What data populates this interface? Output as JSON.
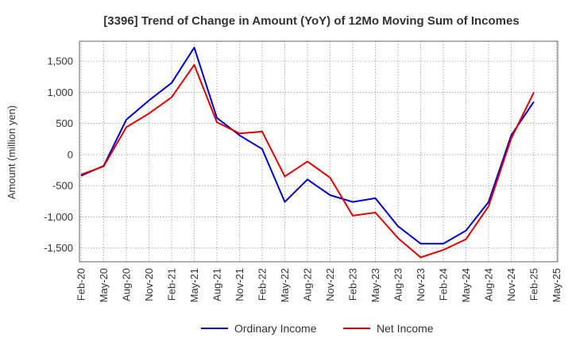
{
  "chart_data": {
    "type": "line",
    "title": "[3396]  Trend of Change in Amount (YoY) of 12Mo Moving Sum of Incomes",
    "xlabel": "",
    "ylabel": "Amount (million yen)",
    "ylim": [
      -1720,
      1820
    ],
    "yticks": [
      -1500,
      -1000,
      -500,
      0,
      500,
      1000,
      1500
    ],
    "ytick_labels": [
      "-1,500",
      "-1,000",
      "-500",
      "0",
      "500",
      "1,000",
      "1,500"
    ],
    "categories": [
      "Feb-20",
      "May-20",
      "Aug-20",
      "Nov-20",
      "Feb-21",
      "May-21",
      "Aug-21",
      "Nov-21",
      "Feb-22",
      "May-22",
      "Aug-22",
      "Nov-22",
      "Feb-23",
      "May-23",
      "Aug-23",
      "Nov-23",
      "Feb-24",
      "May-24",
      "Aug-24",
      "Nov-24",
      "Feb-25",
      "May-25"
    ],
    "grid": true,
    "legend_position": "bottom",
    "series": [
      {
        "name": "Ordinary Income",
        "color": "#0000cc",
        "values": [
          -340,
          -180,
          560,
          870,
          1150,
          1720,
          590,
          310,
          90,
          -760,
          -400,
          -650,
          -760,
          -700,
          -1150,
          -1430,
          -1430,
          -1220,
          -760,
          310,
          850,
          null
        ]
      },
      {
        "name": "Net Income",
        "color": "#dd0000",
        "values": [
          -320,
          -190,
          440,
          660,
          920,
          1440,
          520,
          340,
          370,
          -350,
          -110,
          -370,
          -980,
          -930,
          -1340,
          -1650,
          -1530,
          -1360,
          -830,
          260,
          1000,
          null
        ]
      }
    ]
  }
}
